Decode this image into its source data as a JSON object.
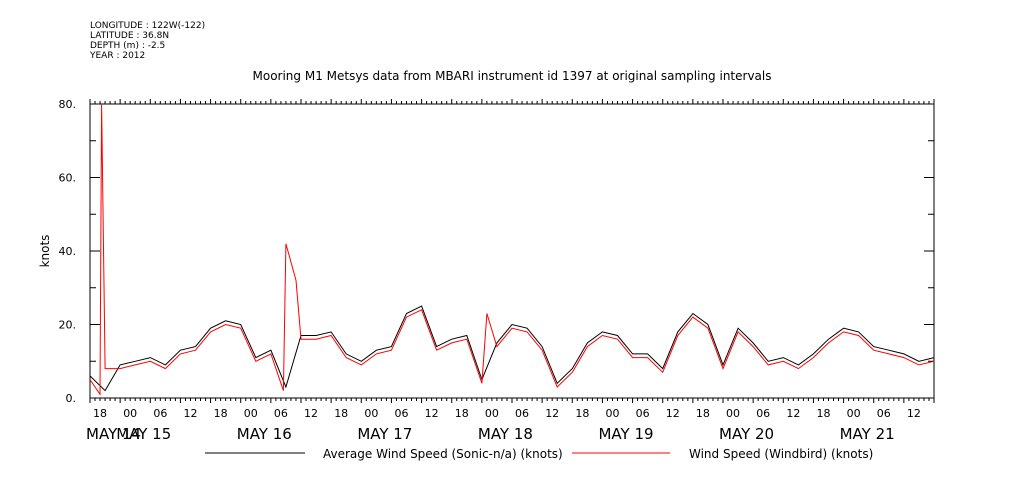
{
  "meta": {
    "longitude": "LONGITUDE : 122W(-122)",
    "latitude": "LATITUDE : 36.8N",
    "depth": "DEPTH (m) : -2.5",
    "year": "YEAR : 2012"
  },
  "chart_data": {
    "type": "line",
    "title": "Mooring M1 Metsys data from MBARI instrument id 1397 at original sampling intervals",
    "ylabel": "knots",
    "xlabel": "",
    "ylim": [
      0,
      80
    ],
    "yticks": [
      0,
      20,
      40,
      60,
      80
    ],
    "ytick_labels": [
      "0.",
      "20.",
      "40.",
      "60.",
      "80."
    ],
    "xlim_hours": [
      0,
      168
    ],
    "x_hour_ticks": [
      "18",
      "00",
      "06",
      "12",
      "18",
      "00",
      "06",
      "12",
      "18",
      "00",
      "06",
      "12",
      "18",
      "00",
      "06",
      "12",
      "18",
      "00",
      "06",
      "12",
      "18",
      "00",
      "06",
      "12",
      "18",
      "00",
      "06",
      "12"
    ],
    "x_day_labels": [
      "MAY 14",
      "MAY 15",
      "MAY 16",
      "MAY 17",
      "MAY 18",
      "MAY 19",
      "MAY 20",
      "MAY 21"
    ],
    "grid": false,
    "legend_position": "bottom",
    "series": [
      {
        "name": "Average Wind Speed (Sonic-n/a) (knots)",
        "color": "#000000",
        "x": [
          0,
          3,
          6,
          9,
          12,
          15,
          18,
          21,
          24,
          27,
          30,
          33,
          36,
          39,
          42,
          45,
          48,
          51,
          54,
          57,
          60,
          63,
          66,
          69,
          72,
          75,
          78,
          81,
          84,
          87,
          90,
          93,
          96,
          99,
          102,
          105,
          108,
          111,
          114,
          117,
          120,
          123,
          126,
          129,
          132,
          135,
          138,
          141,
          144,
          147,
          150,
          153,
          156,
          159,
          162,
          165,
          168
        ],
        "values": [
          6,
          2,
          9,
          10,
          11,
          9,
          13,
          14,
          19,
          21,
          20,
          11,
          13,
          3,
          17,
          17,
          18,
          12,
          10,
          13,
          14,
          23,
          25,
          14,
          16,
          17,
          5,
          15,
          20,
          19,
          14,
          4,
          8,
          15,
          18,
          17,
          12,
          12,
          8,
          18,
          23,
          20,
          9,
          19,
          15,
          10,
          11,
          9,
          12,
          16,
          19,
          18,
          14,
          13,
          12,
          10,
          11
        ]
      },
      {
        "name": "Wind Speed (Windbird) (knots)",
        "color": "#ff0000",
        "x": [
          0,
          2,
          2.3,
          3,
          6,
          9,
          12,
          15,
          18,
          21,
          24,
          27,
          30,
          33,
          36,
          38.5,
          39,
          41,
          42,
          45,
          48,
          51,
          54,
          57,
          60,
          63,
          66,
          69,
          72,
          75,
          78,
          79,
          81,
          84,
          87,
          90,
          93,
          96,
          99,
          102,
          105,
          108,
          111,
          114,
          117,
          120,
          123,
          126,
          129,
          132,
          135,
          138,
          141,
          144,
          147,
          150,
          153,
          156,
          159,
          162,
          165,
          168
        ],
        "values": [
          5,
          1,
          80,
          8,
          8,
          9,
          10,
          8,
          12,
          13,
          18,
          20,
          19,
          10,
          12,
          2,
          42,
          32,
          16,
          16,
          17,
          11,
          9,
          12,
          13,
          22,
          24,
          13,
          15,
          16,
          4,
          23,
          14,
          19,
          18,
          13,
          3,
          7,
          14,
          17,
          16,
          11,
          11,
          7,
          17,
          22,
          19,
          8,
          18,
          14,
          9,
          10,
          8,
          11,
          15,
          18,
          17,
          13,
          12,
          11,
          9,
          10
        ]
      }
    ]
  }
}
